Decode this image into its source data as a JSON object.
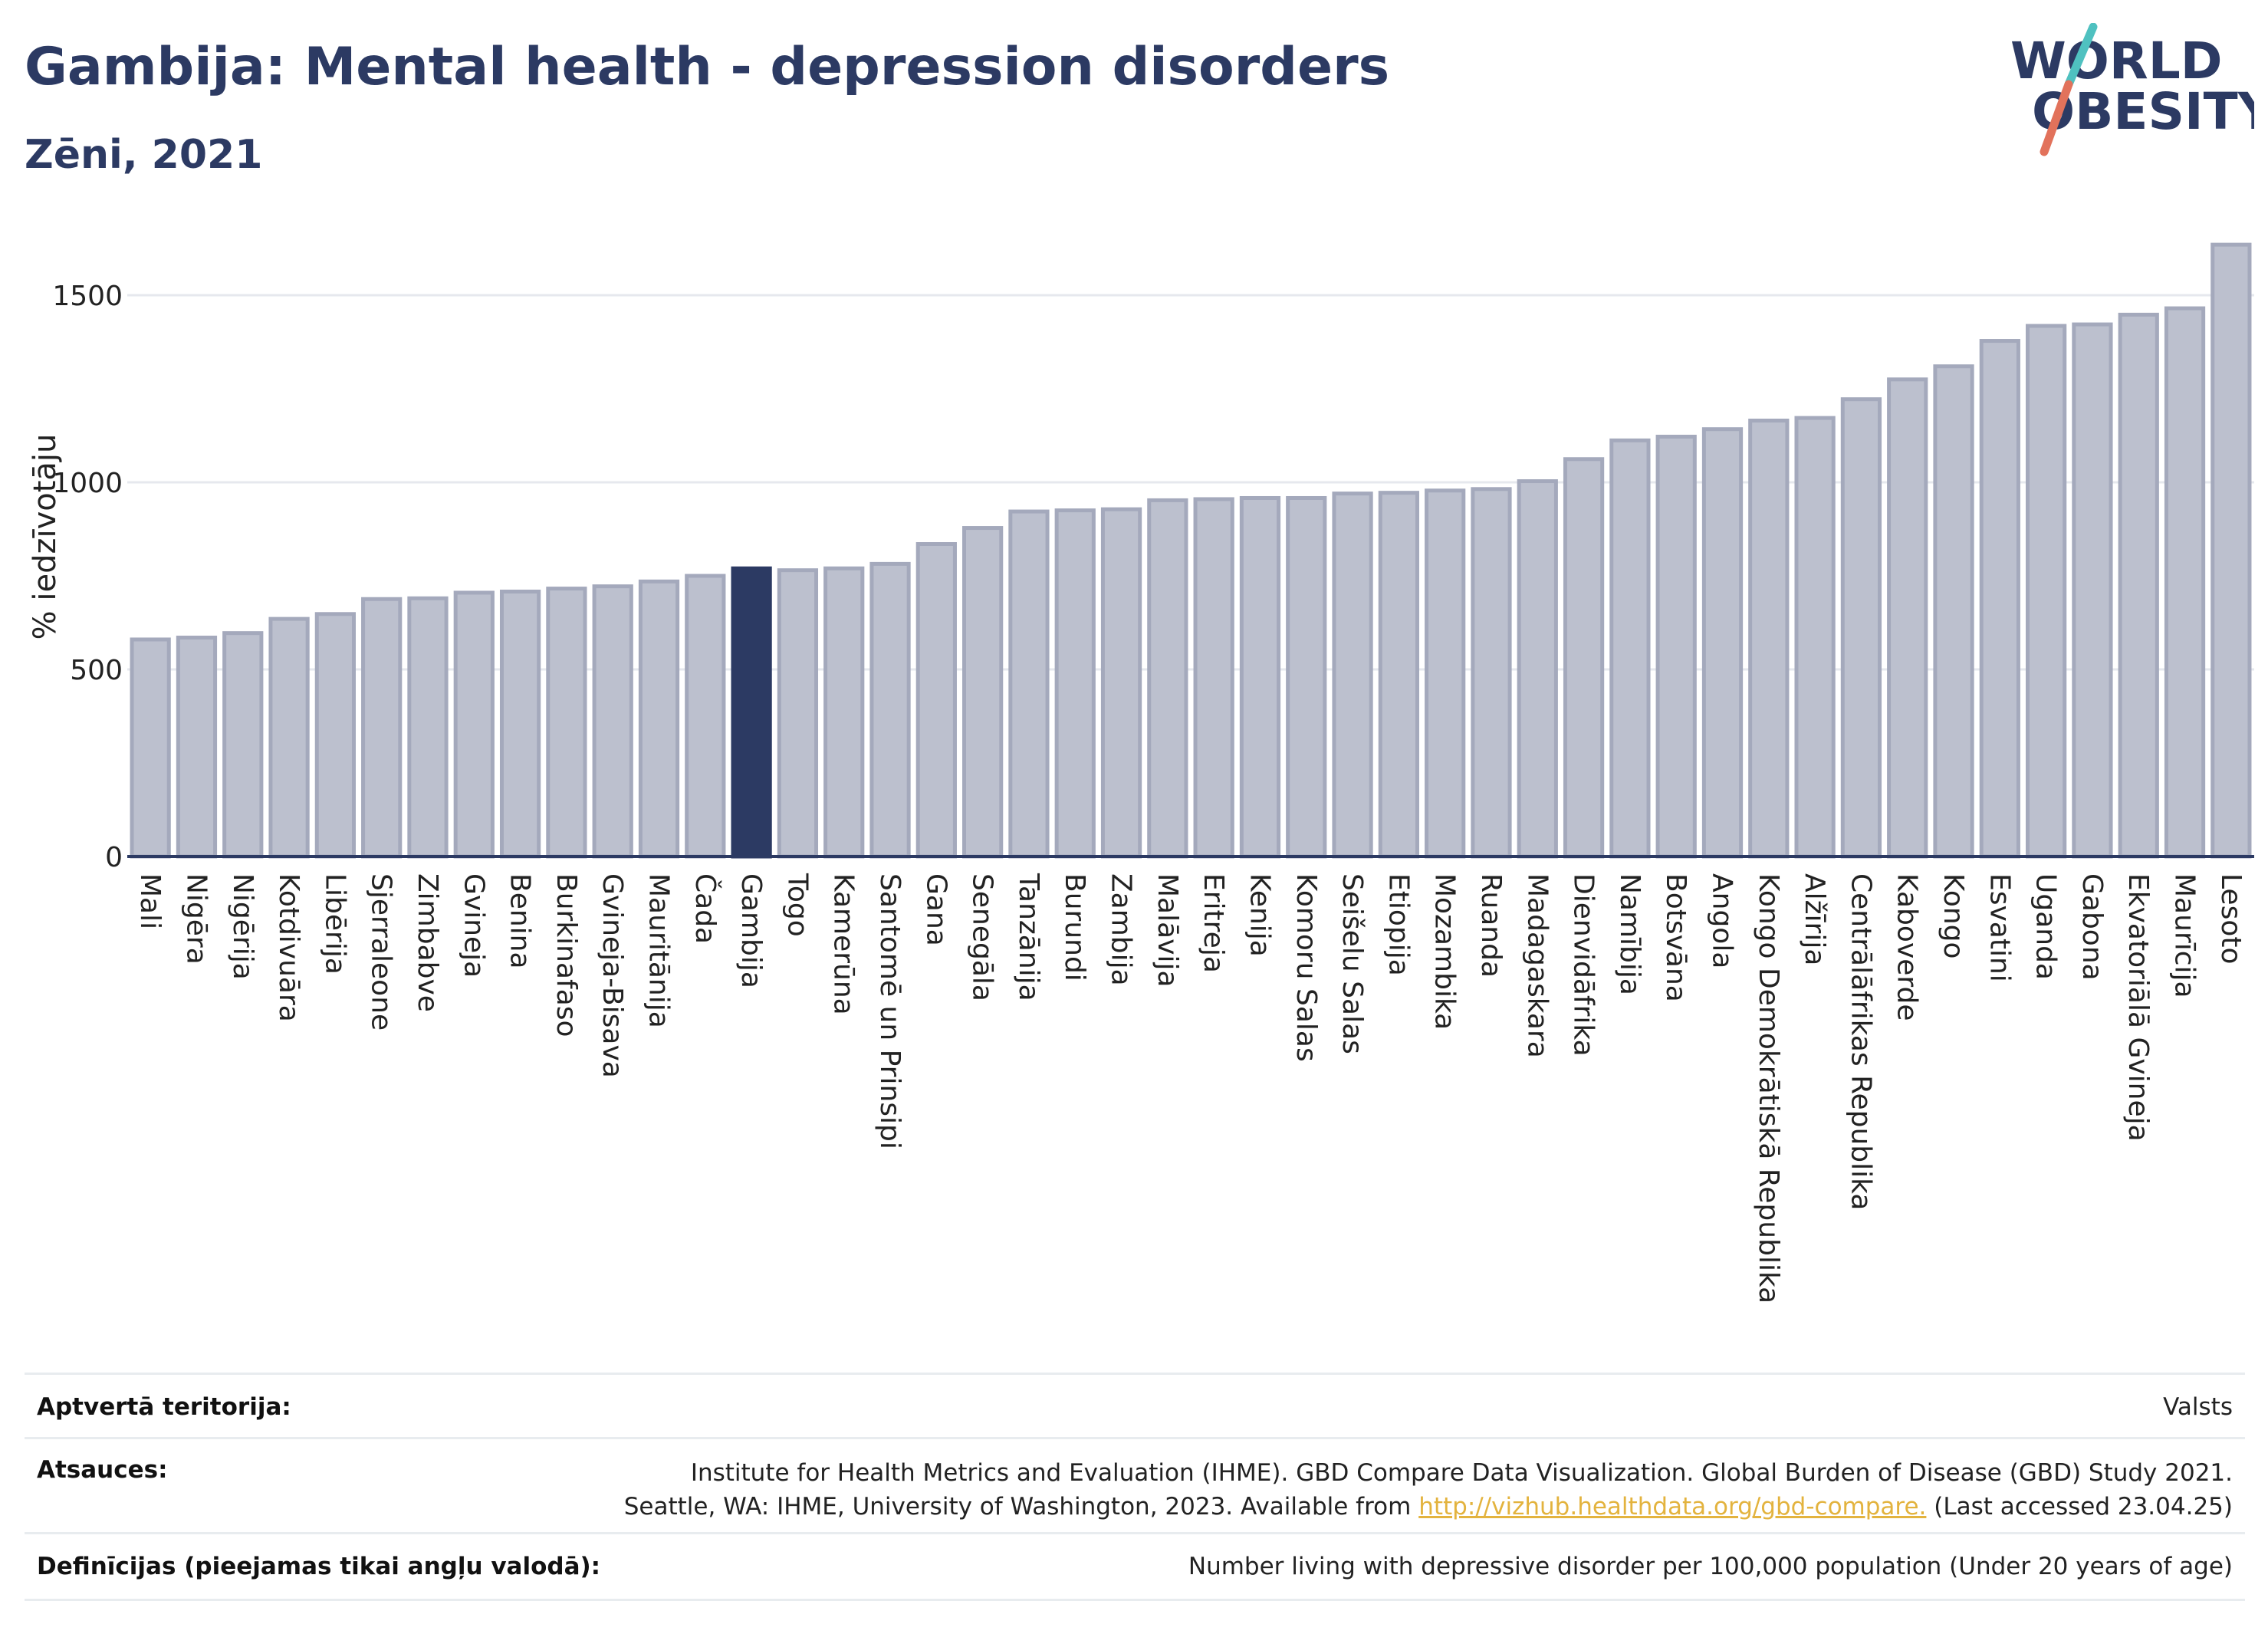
{
  "header": {
    "title": "Gambija: Mental health - depression disorders",
    "subtitle": "Zēni, 2021"
  },
  "logo": {
    "line1": "WORLD",
    "line2": "OBESITY",
    "accent_colors": [
      "#4fc1c0",
      "#e2725b"
    ]
  },
  "colors": {
    "bar": "#bcc0ce",
    "bar_border": "#a4a9bc",
    "highlight": "#2c3a63",
    "grid": "#e6e8ee"
  },
  "chart_data": {
    "type": "bar",
    "title": "Gambija: Mental health - depression disorders",
    "subtitle": "Zēni, 2021",
    "ylabel": "% iedzīvotāju",
    "xlabel": "",
    "ylim": [
      0,
      1700
    ],
    "yticks": [
      0,
      500,
      1000,
      1500
    ],
    "grid": true,
    "highlight": "Gambija",
    "categories": [
      "Mali",
      "Nigēra",
      "Nigērija",
      "Kotdivuāra",
      "Libērija",
      "Sjerraleone",
      "Zimbabve",
      "Gvineja",
      "Benina",
      "Burkinafaso",
      "Gvineja-Bisava",
      "Mauritānija",
      "Čada",
      "Gambija",
      "Togo",
      "Kamerūna",
      "Santomē un Prinsipi",
      "Gana",
      "Senegāla",
      "Tanzānija",
      "Burundi",
      "Zambija",
      "Malāvija",
      "Eritreja",
      "Kenija",
      "Komoru Salas",
      "Seišelu Salas",
      "Etiopija",
      "Mozambika",
      "Ruanda",
      "Madagaskara",
      "Dienvidāfrika",
      "Namībija",
      "Botsvāna",
      "Angola",
      "Kongo Demokrātiskā Republika",
      "Alžīrija",
      "Centrālāfrikas Republika",
      "Kaboverde",
      "Kongo",
      "Esvatini",
      "Uganda",
      "Gabona",
      "Ekvatoriālā Gvineja",
      "Maurīcija",
      "Lesoto"
    ],
    "values": [
      580,
      585,
      597,
      635,
      648,
      688,
      690,
      705,
      708,
      716,
      722,
      735,
      750,
      770,
      765,
      770,
      782,
      835,
      878,
      922,
      925,
      928,
      952,
      955,
      958,
      958,
      970,
      972,
      978,
      982,
      1003,
      1062,
      1112,
      1122,
      1142,
      1165,
      1172,
      1222,
      1275,
      1310,
      1378,
      1418,
      1422,
      1448,
      1465,
      1635
    ]
  },
  "footer": {
    "rows": [
      {
        "label": "Aptvertā teritorija:",
        "lines": [
          "Valsts"
        ]
      },
      {
        "label": "Atsauces:",
        "lines": [
          "Institute for Health Metrics and Evaluation (IHME). GBD Compare Data Visualization. Global Burden of Disease (GBD) Study 2021.",
          "Seattle, WA: IHME, University of Washington, 2023. Available from "
        ],
        "link": "http://vizhub.healthdata.org/gbd-compare.",
        "after_link": " (Last accessed 23.04.25)"
      },
      {
        "label": "Definīcijas (pieejamas tikai angļu valodā):",
        "lines": [
          "Number living with depressive disorder per 100,000 population (Under 20 years of age)"
        ]
      }
    ]
  }
}
